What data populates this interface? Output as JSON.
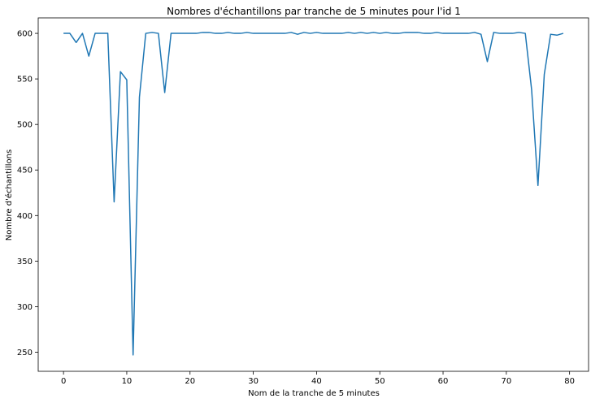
{
  "chart_data": {
    "type": "line",
    "title": "Nombres d'échantillons par tranche de 5 minutes pour l'id 1",
    "xlabel": "Nom de la tranche de 5 minutes",
    "ylabel": "Nombre d'échantillons",
    "xlim": [
      -4,
      83
    ],
    "ylim": [
      229,
      617
    ],
    "xticks": [
      0,
      10,
      20,
      30,
      40,
      50,
      60,
      70,
      80
    ],
    "yticks": [
      250,
      300,
      350,
      400,
      450,
      500,
      550,
      600
    ],
    "grid": false,
    "line_color": "#1f77b4",
    "series": [
      {
        "x": [
          0,
          1,
          2,
          3,
          4,
          5,
          6,
          7,
          8,
          9,
          10,
          11,
          12,
          13,
          14,
          15,
          16,
          17,
          18,
          19,
          20,
          21,
          22,
          23,
          24,
          25,
          26,
          27,
          28,
          29,
          30,
          31,
          32,
          33,
          34,
          35,
          36,
          37,
          38,
          39,
          40,
          41,
          42,
          43,
          44,
          45,
          46,
          47,
          48,
          49,
          50,
          51,
          52,
          53,
          54,
          55,
          56,
          57,
          58,
          59,
          60,
          61,
          62,
          63,
          64,
          65,
          66,
          67,
          68,
          69,
          70,
          71,
          72,
          73,
          74,
          75,
          76,
          77,
          78,
          79
        ],
        "values": [
          600,
          600,
          590,
          600,
          575,
          600,
          600,
          600,
          415,
          558,
          549,
          247,
          530,
          600,
          601,
          600,
          535,
          600,
          600,
          600,
          600,
          600,
          601,
          601,
          600,
          600,
          601,
          600,
          600,
          601,
          600,
          600,
          600,
          600,
          600,
          600,
          601,
          599,
          601,
          600,
          601,
          600,
          600,
          600,
          600,
          601,
          600,
          601,
          600,
          601,
          600,
          601,
          600,
          600,
          601,
          601,
          601,
          600,
          600,
          601,
          600,
          600,
          600,
          600,
          600,
          601,
          599,
          569,
          601,
          600,
          600,
          600,
          601,
          600,
          538,
          433,
          555,
          599,
          598,
          600
        ]
      }
    ]
  }
}
